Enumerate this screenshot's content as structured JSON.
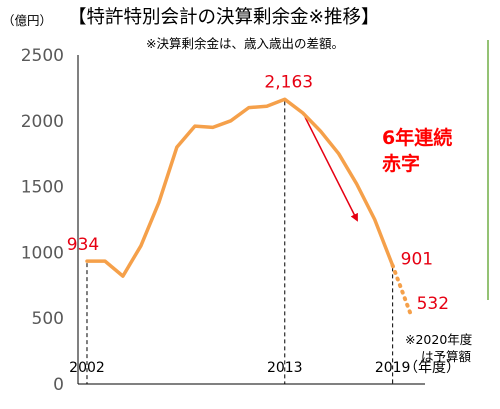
{
  "chart_data": {
    "type": "line",
    "title": "【特許特別会計の決算剰余金※推移】",
    "subtitle": "※決算剰余金は、歳入歳出の差額。",
    "ylabel": "（億円）",
    "xlabel": "（年度）",
    "ylim": [
      0,
      2500
    ],
    "yticks": [
      0,
      500,
      1000,
      1500,
      2000,
      2500
    ],
    "xlim": [
      2001.5,
      2020.8
    ],
    "xtick_labels": [
      "2002",
      "2013",
      "2019"
    ],
    "x": [
      2002,
      2003,
      2004,
      2005,
      2006,
      2007,
      2008,
      2009,
      2010,
      2011,
      2012,
      2013,
      2014,
      2015,
      2016,
      2017,
      2018,
      2019
    ],
    "series": [
      {
        "values": [
          934,
          934,
          820,
          1050,
          1380,
          1800,
          1960,
          1950,
          2000,
          2100,
          2110,
          2163,
          2060,
          1920,
          1750,
          1520,
          1250,
          901
        ],
        "color": "#f5a04a",
        "style": "solid"
      },
      {
        "x": [
          2019,
          2020
        ],
        "values": [
          901,
          532
        ],
        "color": "#f5a04a",
        "style": "dotted"
      }
    ],
    "data_labels": [
      {
        "x": 2002,
        "y": 934,
        "text": "934"
      },
      {
        "x": 2013,
        "y": 2163,
        "text": "2,163"
      },
      {
        "x": 2019,
        "y": 901,
        "text": "901"
      },
      {
        "x": 2020,
        "y": 532,
        "text": "532"
      }
    ],
    "annotation": {
      "line1": "6年連続",
      "line2": "赤字",
      "color": "#ff0000"
    },
    "note": {
      "line1": "※2020年度",
      "line2": "は予算額"
    },
    "grid": false,
    "colors": {
      "line": "#f5a04a",
      "label": "#e60012",
      "arrow": "#e60012",
      "border": "#70ad47"
    }
  }
}
